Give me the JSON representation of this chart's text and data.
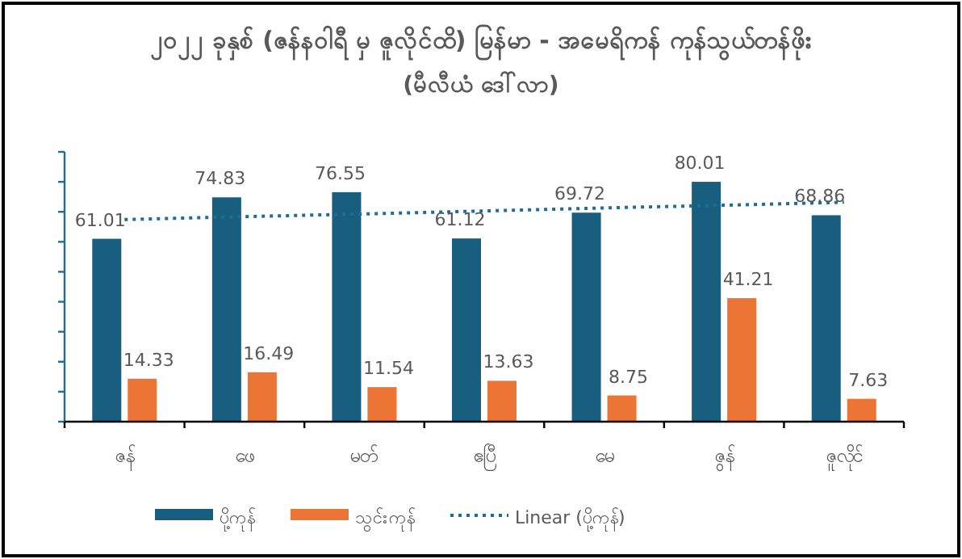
{
  "chart_data": {
    "type": "bar",
    "title": "၂၀၂၂ ခုနှစ် (ဇန်နဝါရီ မှ ဇူလိုင်ထိ) မြန်မာ - အမေရိကန် ကုန်သွယ်တန်ဖိုး",
    "subtitle": "(မီလီယံ ဒေါ်လာ)",
    "categories": [
      "ဇန်",
      "ဖေ",
      "မတ်",
      "ဧပြီ",
      "မေ",
      "ဇွန်",
      "ဇူလိုင်"
    ],
    "series": [
      {
        "name": "ပို့ကုန်",
        "color": "#175e7f",
        "values": [
          61.01,
          74.83,
          76.55,
          61.12,
          69.72,
          80.01,
          68.86
        ],
        "value_labels": [
          "61.01",
          "74.83",
          "76.55",
          "61.12",
          "69.72",
          "80.01",
          "68.86"
        ]
      },
      {
        "name": "သွင်းကုန်",
        "color": "#ec7434",
        "values": [
          14.33,
          16.49,
          11.54,
          13.63,
          8.75,
          41.21,
          7.63
        ],
        "value_labels": [
          "14.33",
          "16.49",
          "11.54",
          "13.63",
          "8.75",
          "41.21",
          "7.63"
        ]
      },
      {
        "name": "Linear (ပို့ကုန်)",
        "type": "line",
        "line_style": "dotted",
        "color": "#1f6d95",
        "values": [
          67.4,
          68.4,
          69.3,
          70.3,
          71.3,
          72.2,
          73.2
        ]
      }
    ],
    "ylim": [
      0,
      90
    ],
    "yticks": [
      {
        "value": 0,
        "label": null
      },
      {
        "value": 10,
        "label": null
      },
      {
        "value": 20,
        "label": null
      },
      {
        "value": 30,
        "label": null
      },
      {
        "value": 40,
        "label": null
      },
      {
        "value": 50,
        "label": null
      },
      {
        "value": 60,
        "label": null
      },
      {
        "value": 70,
        "label": null
      },
      {
        "value": 80,
        "label": null
      },
      {
        "value": 90,
        "label": null
      }
    ],
    "tick_labels": "x",
    "grid": false,
    "legend": "bottom"
  }
}
